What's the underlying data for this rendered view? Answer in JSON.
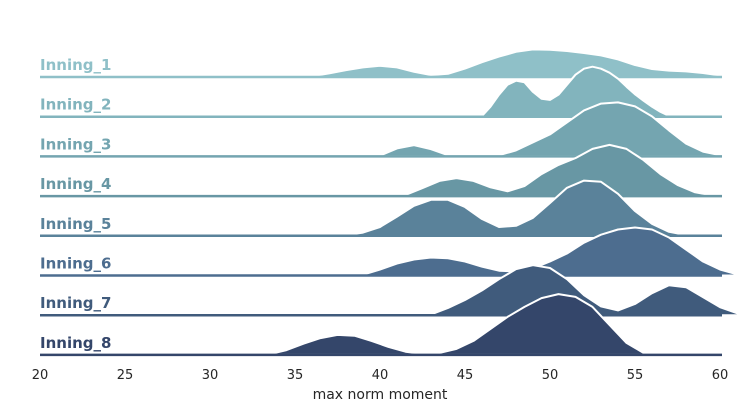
{
  "chart_data": {
    "type": "ridgeline",
    "xlabel": "max  norm  moment",
    "xlim": [
      20,
      61.5
    ],
    "x_ticks": [
      20,
      25,
      30,
      35,
      40,
      45,
      50,
      55,
      60
    ],
    "grid": false,
    "series": [
      {
        "name": "Inning_1",
        "color": "#8fc0c8",
        "x": [
          20,
          36,
          37,
          38,
          39,
          40,
          41,
          42,
          43,
          44,
          45,
          46,
          47,
          48,
          49,
          50,
          51,
          52,
          53,
          54,
          55,
          56,
          57,
          58,
          59,
          60,
          61,
          61.5
        ],
        "y": [
          0,
          0.02,
          0.09,
          0.17,
          0.24,
          0.28,
          0.24,
          0.13,
          0.05,
          0.08,
          0.21,
          0.37,
          0.51,
          0.63,
          0.69,
          0.68,
          0.65,
          0.6,
          0.54,
          0.44,
          0.3,
          0.2,
          0.16,
          0.14,
          0.1,
          0.04,
          0.005,
          0
        ]
      },
      {
        "name": "Inning_2",
        "color": "#82b4bd",
        "x": [
          20,
          46,
          46.5,
          47,
          47.5,
          48,
          48.5,
          49,
          49.5,
          50,
          50.5,
          51,
          51.5,
          52,
          52.5,
          53,
          53.5,
          54,
          54.5,
          55,
          55.5,
          56,
          56.5,
          57,
          61.5
        ],
        "y": [
          0,
          0.02,
          0.25,
          0.55,
          0.8,
          0.9,
          0.86,
          0.62,
          0.45,
          0.42,
          0.55,
          0.8,
          1.05,
          1.2,
          1.25,
          1.2,
          1.1,
          0.95,
          0.75,
          0.56,
          0.4,
          0.25,
          0.12,
          0.02,
          0
        ]
      },
      {
        "name": "Inning_3",
        "color": "#74a5b0",
        "x": [
          20,
          40,
          41,
          42,
          43,
          44,
          47,
          48,
          49,
          50,
          51,
          52,
          53,
          54,
          55,
          56,
          57,
          58,
          59,
          60,
          61.5
        ],
        "y": [
          0,
          0.02,
          0.2,
          0.28,
          0.18,
          0.03,
          0.03,
          0.15,
          0.35,
          0.55,
          0.85,
          1.15,
          1.32,
          1.35,
          1.25,
          1.0,
          0.65,
          0.32,
          0.12,
          0.03,
          0
        ]
      },
      {
        "name": "Inning_4",
        "color": "#6897a4",
        "x": [
          20,
          41.5,
          42.5,
          43.5,
          44.5,
          45.5,
          46.5,
          47.5,
          48.5,
          49.5,
          50.5,
          51.5,
          52.5,
          53.5,
          54.5,
          55.5,
          56.5,
          57.5,
          58.5,
          59.5,
          61.5
        ],
        "y": [
          0,
          0.03,
          0.2,
          0.38,
          0.45,
          0.38,
          0.22,
          0.12,
          0.25,
          0.55,
          0.78,
          0.95,
          1.18,
          1.28,
          1.18,
          0.9,
          0.55,
          0.28,
          0.1,
          0.02,
          0
        ]
      },
      {
        "name": "Inning_5",
        "color": "#5a829a",
        "x": [
          20,
          38,
          39,
          40,
          41,
          42,
          43,
          44,
          45,
          46,
          47,
          48,
          49,
          50,
          51,
          52,
          53,
          54,
          55,
          56,
          57,
          58,
          61.5
        ],
        "y": [
          0,
          0.02,
          0.08,
          0.22,
          0.48,
          0.75,
          0.9,
          0.9,
          0.72,
          0.42,
          0.22,
          0.25,
          0.45,
          0.82,
          1.2,
          1.38,
          1.35,
          1.05,
          0.62,
          0.3,
          0.1,
          0.02,
          0
        ]
      },
      {
        "name": "Inning_6",
        "color": "#4d6d8f",
        "x": [
          20,
          39,
          40,
          41,
          42,
          43,
          44,
          45,
          46,
          47,
          48,
          49,
          50,
          51,
          52,
          53,
          54,
          55,
          56,
          57,
          58,
          59,
          60,
          61,
          61.5
        ],
        "y": [
          0,
          0.02,
          0.15,
          0.3,
          0.4,
          0.45,
          0.43,
          0.35,
          0.22,
          0.12,
          0.1,
          0.18,
          0.35,
          0.55,
          0.82,
          1.02,
          1.15,
          1.2,
          1.15,
          0.95,
          0.65,
          0.35,
          0.15,
          0.03,
          0
        ]
      },
      {
        "name": "Inning_7",
        "color": "#405b7c",
        "x": [
          20,
          43,
          44,
          45,
          46,
          47,
          48,
          49,
          50,
          51,
          52,
          53,
          54,
          55,
          56,
          57,
          58,
          59,
          60,
          61,
          61.5
        ],
        "y": [
          0,
          0.02,
          0.18,
          0.38,
          0.62,
          0.9,
          1.15,
          1.25,
          1.18,
          0.9,
          0.5,
          0.22,
          0.12,
          0.28,
          0.55,
          0.75,
          0.7,
          0.45,
          0.2,
          0.05,
          0
        ]
      },
      {
        "name": "Inning_8",
        "color": "#34466a",
        "x": [
          20,
          33.5,
          34.5,
          35.5,
          36.5,
          37.5,
          38.5,
          39.5,
          40.5,
          41.5,
          42.5,
          43.5,
          44.5,
          45.5,
          46.5,
          47.5,
          48.5,
          49.5,
          50.5,
          51.5,
          52.5,
          53.5,
          54.5,
          55.5,
          61.5
        ],
        "y": [
          0,
          0.02,
          0.12,
          0.28,
          0.42,
          0.5,
          0.48,
          0.35,
          0.2,
          0.08,
          0.03,
          0.05,
          0.15,
          0.35,
          0.65,
          0.95,
          1.2,
          1.42,
          1.52,
          1.45,
          1.2,
          0.75,
          0.3,
          0.05,
          0
        ]
      }
    ]
  }
}
